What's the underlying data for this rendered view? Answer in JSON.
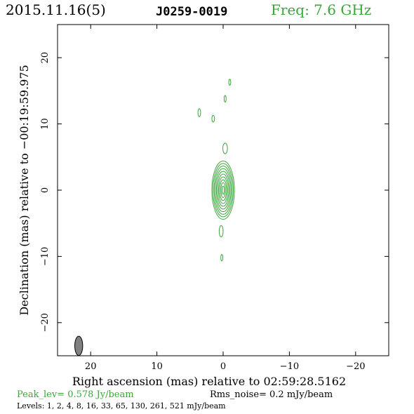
{
  "header": {
    "date": "2015.11.16(5)",
    "source": "J0259-0019",
    "freq": "Freq: 7.6 GHz"
  },
  "colors": {
    "contour": "#3aa63a",
    "beam": "#808080",
    "axis": "#000000"
  },
  "chart_data": {
    "type": "contour",
    "xlabel": "Right ascension (mas) relative to 02:59:28.5162",
    "ylabel": "Declination (mas) relative to −00:19:59.975",
    "xlim": [
      25,
      -25
    ],
    "ylim": [
      -25,
      25
    ],
    "xticks": [
      20,
      10,
      0,
      -10,
      -20
    ],
    "yticks": [
      20,
      10,
      0,
      -10,
      -20
    ],
    "xtick_labels": [
      "20",
      "10",
      "0",
      "−10",
      "−20"
    ],
    "ytick_labels": [
      "20",
      "10",
      "0",
      "−10",
      "−20"
    ],
    "core": {
      "x": 0,
      "y": 0,
      "nested_contours": 10,
      "outer_halfwidth_x": 1.7,
      "outer_halfwidth_y": 4.4
    },
    "components": [
      {
        "x": -1.0,
        "y": 16.3,
        "rx": 0.15,
        "ry": 0.45
      },
      {
        "x": -0.3,
        "y": 13.8,
        "rx": 0.15,
        "ry": 0.5
      },
      {
        "x": 3.6,
        "y": 11.7,
        "rx": 0.2,
        "ry": 0.6
      },
      {
        "x": 1.5,
        "y": 10.8,
        "rx": 0.2,
        "ry": 0.5
      },
      {
        "x": -0.3,
        "y": 6.3,
        "rx": 0.35,
        "ry": 0.8
      },
      {
        "x": 0.3,
        "y": -6.2,
        "rx": 0.3,
        "ry": 0.85
      },
      {
        "x": 0.2,
        "y": -10.2,
        "rx": 0.15,
        "ry": 0.5
      }
    ],
    "beam": {
      "x": 21.8,
      "y": -23.5,
      "major": 2.9,
      "minor": 1.2
    },
    "peak_label": "Peak_lev=  0.578 Jy/beam",
    "rms_label": "Rms_noise=  0.2 mJy/beam",
    "levels_label": "Levels:   1,   2,   4,   8,  16,  33,  65, 130, 261, 521 mJy/beam"
  }
}
